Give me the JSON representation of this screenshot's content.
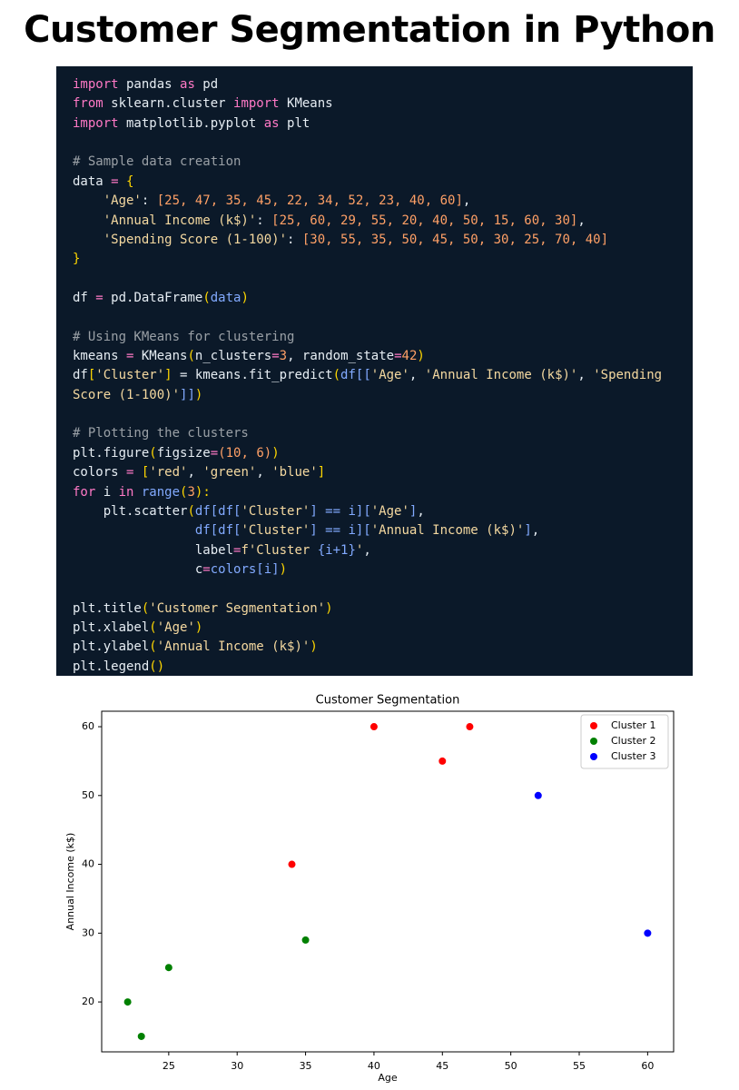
{
  "title": "Customer Segmentation in Python",
  "code": {
    "lines": [
      [
        [
          "import",
          "#ff79c6"
        ],
        [
          " pandas ",
          "#e6edf3"
        ],
        [
          "as",
          "#ff79c6"
        ],
        [
          " pd",
          "#e6edf3"
        ]
      ],
      [
        [
          "from",
          "#ff79c6"
        ],
        [
          " sklearn.cluster ",
          "#e6edf3"
        ],
        [
          "import",
          "#ff79c6"
        ],
        [
          " KMeans",
          "#e6edf3"
        ]
      ],
      [
        [
          "import",
          "#ff79c6"
        ],
        [
          " matplotlib.pyplot ",
          "#e6edf3"
        ],
        [
          "as",
          "#ff79c6"
        ],
        [
          " plt",
          "#e6edf3"
        ]
      ],
      [],
      [
        [
          "# Sample data creation",
          "#9aa0a6"
        ]
      ],
      [
        [
          "data ",
          "#e6edf3"
        ],
        [
          "=",
          "#ff79c6"
        ],
        [
          " {",
          "#ffd700"
        ]
      ],
      [
        [
          "    'Age'",
          "#f5d9a0"
        ],
        [
          ": ",
          "#e6edf3"
        ],
        [
          "[25, 47, 35, 45, 22, 34, 52, 23, 40, 60]",
          "#ffa066"
        ],
        [
          ",",
          "#e6edf3"
        ]
      ],
      [
        [
          "    'Annual Income (k$)'",
          "#f5d9a0"
        ],
        [
          ": ",
          "#e6edf3"
        ],
        [
          "[25, 60, 29, 55, 20, 40, 50, 15, 60, 30]",
          "#ffa066"
        ],
        [
          ",",
          "#e6edf3"
        ]
      ],
      [
        [
          "    'Spending Score (1-100)'",
          "#f5d9a0"
        ],
        [
          ": ",
          "#e6edf3"
        ],
        [
          "[30, 55, 35, 50, 45, 50, 30, 25, 70, 40]",
          "#ffa066"
        ]
      ],
      [
        [
          "}",
          "#ffd700"
        ]
      ],
      [],
      [
        [
          "df ",
          "#e6edf3"
        ],
        [
          "=",
          "#ff79c6"
        ],
        [
          " pd.DataFrame",
          "#e6edf3"
        ],
        [
          "(",
          "#ffd700"
        ],
        [
          "data",
          "#82aaff"
        ],
        [
          ")",
          "#ffd700"
        ]
      ],
      [],
      [
        [
          "# Using KMeans for clustering",
          "#9aa0a6"
        ]
      ],
      [
        [
          "kmeans ",
          "#e6edf3"
        ],
        [
          "=",
          "#ff79c6"
        ],
        [
          " KMeans",
          "#e6edf3"
        ],
        [
          "(",
          "#ffd700"
        ],
        [
          "n_clusters",
          "#e6edf3"
        ],
        [
          "=",
          "#ff79c6"
        ],
        [
          "3",
          "#ffa066"
        ],
        [
          ", random_state",
          "#e6edf3"
        ],
        [
          "=",
          "#ff79c6"
        ],
        [
          "42",
          "#ffa066"
        ],
        [
          ")",
          "#ffd700"
        ]
      ],
      [
        [
          "df",
          "#e6edf3"
        ],
        [
          "[",
          "#ffd700"
        ],
        [
          "'Cluster'",
          "#f5d9a0"
        ],
        [
          "]",
          "#ffd700"
        ],
        [
          " = kmeans.fit_predict",
          "#e6edf3"
        ],
        [
          "(",
          "#ffd700"
        ],
        [
          "df[[",
          "#82aaff"
        ],
        [
          "'Age'",
          "#f5d9a0"
        ],
        [
          ", ",
          "#e6edf3"
        ],
        [
          "'Annual Income (k$)'",
          "#f5d9a0"
        ],
        [
          ", ",
          "#e6edf3"
        ],
        [
          "'Spending",
          "#f5d9a0"
        ]
      ],
      [
        [
          "Score (1-100)'",
          "#f5d9a0"
        ],
        [
          "]]",
          "#82aaff"
        ],
        [
          ")",
          "#ffd700"
        ]
      ],
      [],
      [
        [
          "# Plotting the clusters",
          "#9aa0a6"
        ]
      ],
      [
        [
          "plt.figure",
          "#e6edf3"
        ],
        [
          "(",
          "#ffd700"
        ],
        [
          "figsize",
          "#e6edf3"
        ],
        [
          "=",
          "#ff79c6"
        ],
        [
          "(10, 6)",
          "#ffa066"
        ],
        [
          ")",
          "#ffd700"
        ]
      ],
      [
        [
          "colors ",
          "#e6edf3"
        ],
        [
          "=",
          "#ff79c6"
        ],
        [
          " [",
          "#ffd700"
        ],
        [
          "'red'",
          "#f5d9a0"
        ],
        [
          ", ",
          "#e6edf3"
        ],
        [
          "'green'",
          "#f5d9a0"
        ],
        [
          ", ",
          "#e6edf3"
        ],
        [
          "'blue'",
          "#f5d9a0"
        ],
        [
          "]",
          "#ffd700"
        ]
      ],
      [
        [
          "for",
          "#ff79c6"
        ],
        [
          " i ",
          "#e6edf3"
        ],
        [
          "in",
          "#ff79c6"
        ],
        [
          " range",
          "#82aaff"
        ],
        [
          "(",
          "#ffd700"
        ],
        [
          "3",
          "#ffa066"
        ],
        [
          "):",
          "#ffd700"
        ]
      ],
      [
        [
          "    plt.scatter",
          "#e6edf3"
        ],
        [
          "(",
          "#ffd700"
        ],
        [
          "df[df[",
          "#82aaff"
        ],
        [
          "'Cluster'",
          "#f5d9a0"
        ],
        [
          "] == i][",
          "#82aaff"
        ],
        [
          "'Age'",
          "#f5d9a0"
        ],
        [
          "]",
          "#82aaff"
        ],
        [
          ",",
          "#e6edf3"
        ]
      ],
      [
        [
          "                df[df[",
          "#82aaff"
        ],
        [
          "'Cluster'",
          "#f5d9a0"
        ],
        [
          "] == i][",
          "#82aaff"
        ],
        [
          "'Annual Income (k$)'",
          "#f5d9a0"
        ],
        [
          "]",
          "#82aaff"
        ],
        [
          ",",
          "#e6edf3"
        ]
      ],
      [
        [
          "                label",
          "#e6edf3"
        ],
        [
          "=",
          "#ff79c6"
        ],
        [
          "f'Cluster ",
          "#f5d9a0"
        ],
        [
          "{i+1}",
          "#82aaff"
        ],
        [
          "'",
          "#f5d9a0"
        ],
        [
          ",",
          "#e6edf3"
        ]
      ],
      [
        [
          "                c",
          "#e6edf3"
        ],
        [
          "=",
          "#ff79c6"
        ],
        [
          "colors[i]",
          "#82aaff"
        ],
        [
          ")",
          "#ffd700"
        ]
      ],
      [],
      [
        [
          "plt.title",
          "#e6edf3"
        ],
        [
          "(",
          "#ffd700"
        ],
        [
          "'Customer Segmentation'",
          "#f5d9a0"
        ],
        [
          ")",
          "#ffd700"
        ]
      ],
      [
        [
          "plt.xlabel",
          "#e6edf3"
        ],
        [
          "(",
          "#ffd700"
        ],
        [
          "'Age'",
          "#f5d9a0"
        ],
        [
          ")",
          "#ffd700"
        ]
      ],
      [
        [
          "plt.ylabel",
          "#e6edf3"
        ],
        [
          "(",
          "#ffd700"
        ],
        [
          "'Annual Income (k$)'",
          "#f5d9a0"
        ],
        [
          ")",
          "#ffd700"
        ]
      ],
      [
        [
          "plt.legend",
          "#e6edf3"
        ],
        [
          "()",
          "#ffd700"
        ]
      ]
    ]
  },
  "chart_data": {
    "type": "scatter",
    "title": "Customer Segmentation",
    "x_label": "Age",
    "y_label": "Annual Income (k$)",
    "series": [
      {
        "name": "Cluster 1",
        "color": "#ff0000",
        "x": [
          34,
          40,
          45,
          47
        ],
        "values": [
          40,
          60,
          55,
          60
        ]
      },
      {
        "name": "Cluster 2",
        "color": "#008000",
        "x": [
          22,
          23,
          25,
          35
        ],
        "values": [
          20,
          15,
          25,
          29
        ]
      },
      {
        "name": "Cluster 3",
        "color": "#0000ff",
        "x": [
          52,
          60
        ],
        "values": [
          50,
          30
        ]
      }
    ],
    "xlim": [
      20.1,
      61.9
    ],
    "xticks": [
      25,
      30,
      35,
      40,
      45,
      50,
      55,
      60
    ],
    "ylim": [
      12.75,
      62.25
    ],
    "yticks": [
      20,
      30,
      40,
      50,
      60
    ],
    "grid": false,
    "legend": "upper right"
  }
}
